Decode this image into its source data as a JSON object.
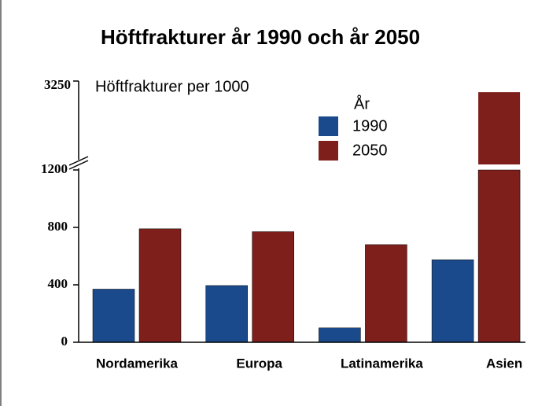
{
  "chart_data": {
    "type": "bar",
    "title": "Höftfrakturer år 1990 och år 2050",
    "y_label": "Höftfrakturer per 1000",
    "legend_title": "År",
    "categories": [
      "Nordamerika",
      "Europa",
      "Latinamerika",
      "Asien"
    ],
    "series": [
      {
        "name": "1990",
        "color": "#1b4a8c",
        "values": [
          370,
          395,
          100,
          575
        ]
      },
      {
        "name": "2050",
        "color": "#7e1f1b",
        "values": [
          790,
          770,
          680,
          3150
        ]
      }
    ],
    "ylim": [
      0,
      1200
    ],
    "yticks": [
      0,
      400,
      800,
      1200
    ],
    "axis_break": {
      "ylim": [
        2500,
        3250
      ],
      "yticks": [
        3250
      ]
    }
  }
}
